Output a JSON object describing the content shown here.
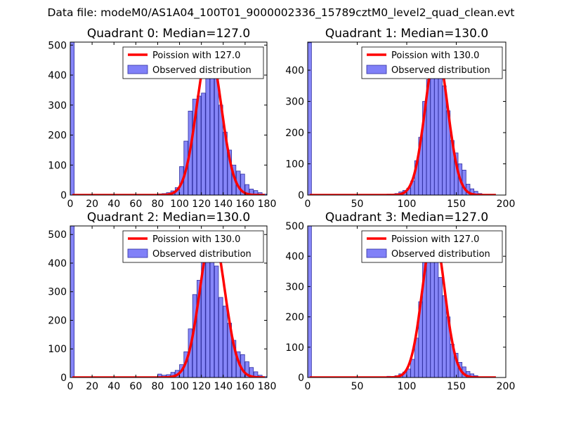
{
  "suptitle": "Data file: modeM0/AS1A04_100T01_9000002336_15789cztM0_level2_quad_clean.evt",
  "colors": {
    "bar_fill": "#8080f8",
    "bar_edge": "#3030a0",
    "curve": "#ff0000"
  },
  "chart_data": [
    {
      "type": "bar",
      "title": "Quadrant 0: Median=127.0",
      "xlim": [
        0,
        180
      ],
      "ylim": [
        0,
        510
      ],
      "xticks": [
        0,
        20,
        40,
        60,
        80,
        100,
        120,
        140,
        160,
        180
      ],
      "yticks": [
        0,
        100,
        200,
        300,
        400,
        500
      ],
      "bin_width": 3.6,
      "bins": [
        [
          0,
          510
        ],
        [
          76,
          2
        ],
        [
          80,
          4
        ],
        [
          84,
          5
        ],
        [
          88,
          8
        ],
        [
          92,
          14
        ],
        [
          96,
          25
        ],
        [
          100,
          95
        ],
        [
          104,
          180
        ],
        [
          108,
          280
        ],
        [
          112,
          320
        ],
        [
          116,
          330
        ],
        [
          120,
          340
        ],
        [
          124,
          480
        ],
        [
          128,
          450
        ],
        [
          132,
          390
        ],
        [
          136,
          300
        ],
        [
          140,
          210
        ],
        [
          144,
          150
        ],
        [
          148,
          100
        ],
        [
          152,
          80
        ],
        [
          156,
          70
        ],
        [
          160,
          35
        ],
        [
          164,
          20
        ],
        [
          168,
          15
        ],
        [
          172,
          8
        ],
        [
          176,
          3
        ]
      ],
      "curve_mean": 127.0,
      "curve_peak": 488,
      "curve_range": [
        2,
        178
      ],
      "legend": [
        "Poission with 127.0",
        "Observed distribution"
      ]
    },
    {
      "type": "bar",
      "title": "Quadrant 1: Median=130.0",
      "xlim": [
        0,
        200
      ],
      "ylim": [
        0,
        490
      ],
      "xticks": [
        0,
        50,
        100,
        150,
        200
      ],
      "yticks": [
        0,
        100,
        200,
        300,
        400
      ],
      "bin_width": 3.8,
      "bins": [
        [
          0,
          488
        ],
        [
          80,
          3
        ],
        [
          88,
          5
        ],
        [
          92,
          10
        ],
        [
          96,
          15
        ],
        [
          100,
          22
        ],
        [
          104,
          45
        ],
        [
          108,
          110
        ],
        [
          112,
          185
        ],
        [
          116,
          300
        ],
        [
          120,
          370
        ],
        [
          124,
          450
        ],
        [
          128,
          420
        ],
        [
          132,
          390
        ],
        [
          136,
          350
        ],
        [
          140,
          270
        ],
        [
          144,
          175
        ],
        [
          148,
          135
        ],
        [
          152,
          100
        ],
        [
          156,
          80
        ],
        [
          160,
          35
        ],
        [
          164,
          20
        ],
        [
          168,
          12
        ],
        [
          172,
          5
        ]
      ],
      "curve_mean": 130.0,
      "curve_peak": 462,
      "curve_range": [
        2,
        190
      ],
      "legend": [
        "Poission with 130.0",
        "Observed distribution"
      ]
    },
    {
      "type": "bar",
      "title": "Quadrant 2: Median=130.0",
      "xlim": [
        0,
        180
      ],
      "ylim": [
        0,
        530
      ],
      "xticks": [
        0,
        20,
        40,
        60,
        80,
        100,
        120,
        140,
        160,
        180
      ],
      "yticks": [
        0,
        100,
        200,
        300,
        400,
        500
      ],
      "bin_width": 3.6,
      "bins": [
        [
          0,
          530
        ],
        [
          80,
          12
        ],
        [
          84,
          8
        ],
        [
          88,
          10
        ],
        [
          92,
          18
        ],
        [
          96,
          25
        ],
        [
          100,
          45
        ],
        [
          104,
          90
        ],
        [
          108,
          170
        ],
        [
          112,
          290
        ],
        [
          116,
          340
        ],
        [
          120,
          410
        ],
        [
          124,
          480
        ],
        [
          128,
          420
        ],
        [
          132,
          390
        ],
        [
          136,
          280
        ],
        [
          140,
          250
        ],
        [
          144,
          190
        ],
        [
          148,
          130
        ],
        [
          152,
          90
        ],
        [
          156,
          80
        ],
        [
          160,
          55
        ],
        [
          164,
          35
        ],
        [
          168,
          20
        ],
        [
          172,
          8
        ],
        [
          176,
          3
        ]
      ],
      "curve_mean": 130.0,
      "curve_peak": 505,
      "curve_range": [
        2,
        178
      ],
      "legend": [
        "Poission with 130.0",
        "Observed distribution"
      ]
    },
    {
      "type": "bar",
      "title": "Quadrant 3: Median=127.0",
      "xlim": [
        0,
        200
      ],
      "ylim": [
        0,
        500
      ],
      "xticks": [
        0,
        50,
        100,
        150,
        200
      ],
      "yticks": [
        0,
        100,
        200,
        300,
        400,
        500
      ],
      "bin_width": 3.8,
      "bins": [
        [
          0,
          500
        ],
        [
          80,
          4
        ],
        [
          88,
          6
        ],
        [
          92,
          12
        ],
        [
          96,
          18
        ],
        [
          100,
          28
        ],
        [
          104,
          60
        ],
        [
          108,
          130
        ],
        [
          112,
          250
        ],
        [
          116,
          380
        ],
        [
          120,
          430
        ],
        [
          124,
          460
        ],
        [
          128,
          410
        ],
        [
          132,
          330
        ],
        [
          136,
          270
        ],
        [
          140,
          200
        ],
        [
          144,
          110
        ],
        [
          148,
          80
        ],
        [
          152,
          50
        ],
        [
          156,
          35
        ],
        [
          160,
          20
        ],
        [
          164,
          12
        ],
        [
          168,
          6
        ]
      ],
      "curve_mean": 127.0,
      "curve_peak": 478,
      "curve_range": [
        2,
        190
      ],
      "legend": [
        "Poission with 127.0",
        "Observed distribution"
      ]
    }
  ]
}
